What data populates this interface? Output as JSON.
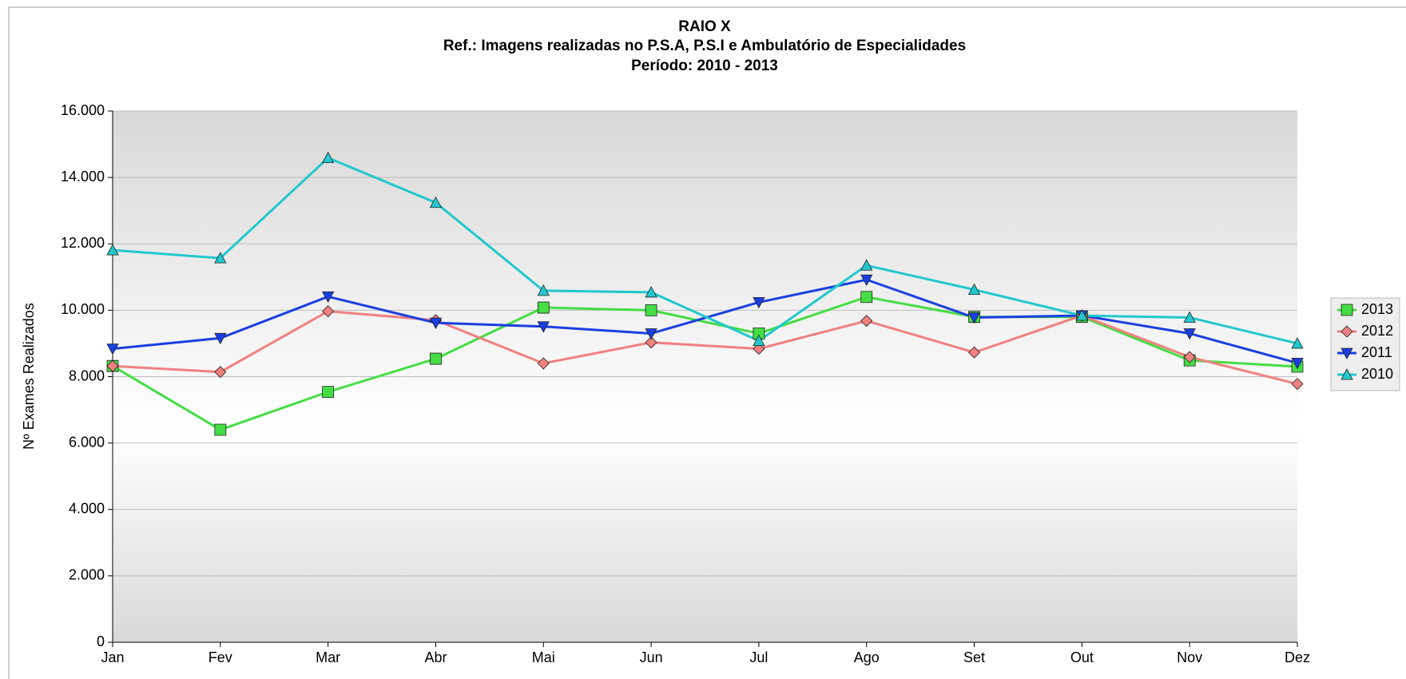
{
  "chart_data": {
    "type": "line",
    "title": "RAIO X",
    "subtitle": [
      "Ref.: Imagens realizadas no P.S.A, P.S.I e Ambulatório de Especialidades",
      "Período: 2010 - 2013"
    ],
    "y_label": "Nº Exames Realizados",
    "categories": [
      "Jan",
      "Fev",
      "Mar",
      "Abr",
      "Mai",
      "Jun",
      "Jul",
      "Ago",
      "Set",
      "Out",
      "Nov",
      "Dez"
    ],
    "series": [
      {
        "name": "2013",
        "color": "#44dd44",
        "marker": "square",
        "values": [
          8320,
          6400,
          7540,
          8540,
          10080,
          10000,
          9300,
          10400,
          9800,
          9800,
          8490,
          8300
        ]
      },
      {
        "name": "2012",
        "color": "#f08080",
        "marker": "diamond",
        "values": [
          8320,
          8140,
          9970,
          9700,
          8400,
          9030,
          8840,
          9680,
          8730,
          9840,
          8590,
          7780
        ]
      },
      {
        "name": "2011",
        "color": "#1a3fe0",
        "marker": "triangle-down",
        "values": [
          8840,
          9160,
          10410,
          9620,
          9510,
          9300,
          10240,
          10920,
          9780,
          9840,
          9300,
          8410
        ]
      },
      {
        "name": "2010",
        "color": "#22c8cc",
        "marker": "triangle-up",
        "values": [
          11810,
          11570,
          14590,
          13240,
          10590,
          10540,
          9080,
          11350,
          10620,
          9840,
          9780,
          9000
        ]
      }
    ],
    "ylim": [
      0,
      16000
    ],
    "yticks": [
      0,
      {
        "value": 2000,
        "label": "2.000"
      },
      {
        "value": 4000,
        "label": "4.000"
      },
      {
        "value": 6000,
        "label": "6.000"
      },
      {
        "value": 8000,
        "label": "8.000"
      },
      {
        "value": 10000,
        "label": "10.000"
      },
      {
        "value": 12000,
        "label": "12.000"
      },
      {
        "value": 14000,
        "label": "14.000"
      },
      {
        "value": 16000,
        "label": "16.000"
      }
    ],
    "grid": true,
    "legend": "right"
  }
}
